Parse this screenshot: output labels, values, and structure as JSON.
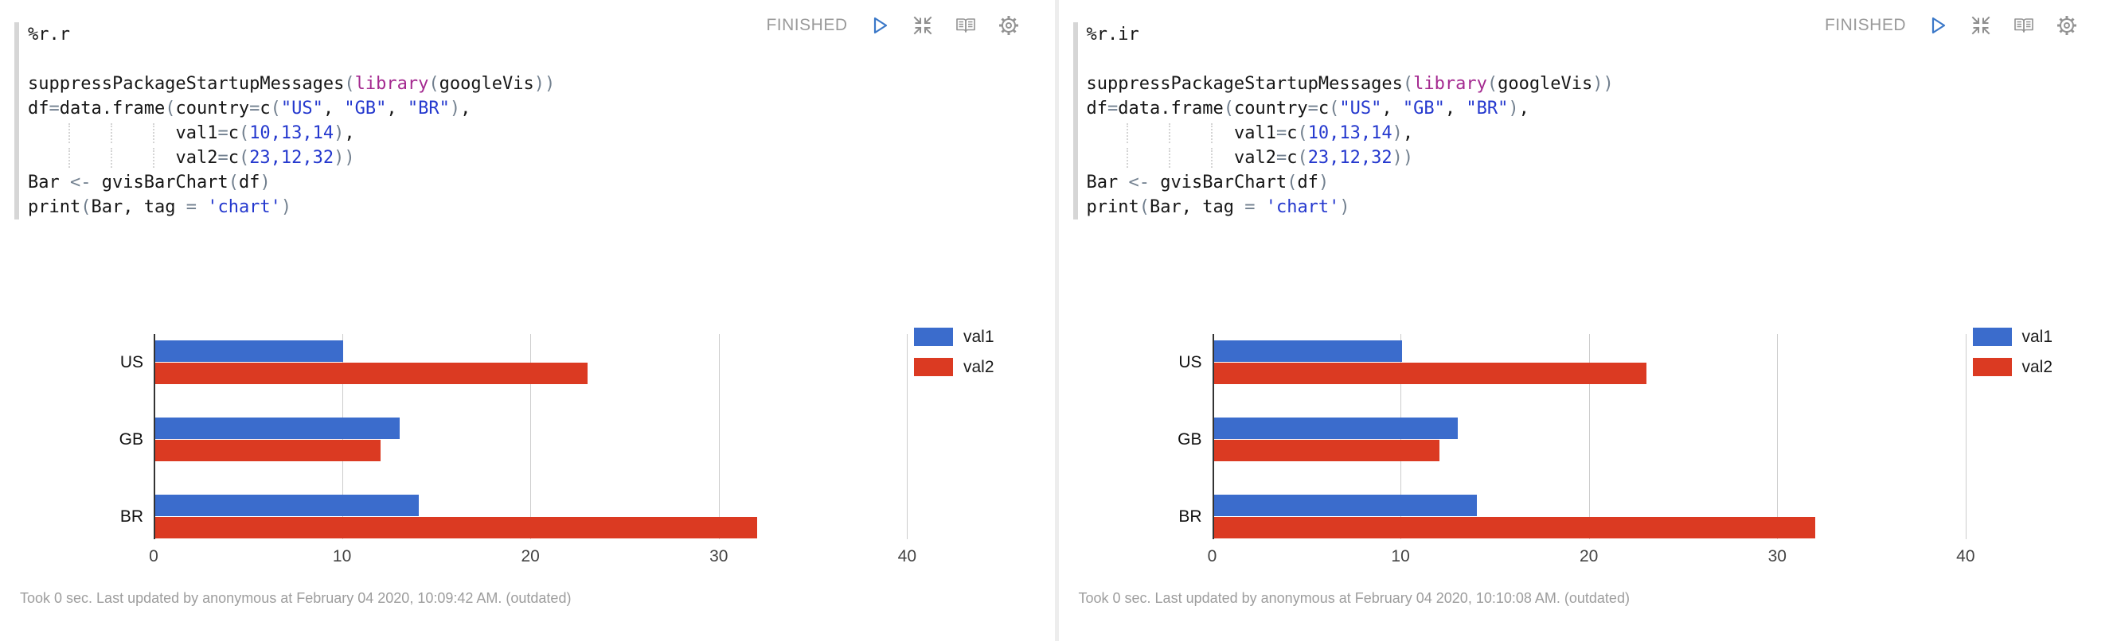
{
  "colors": {
    "bar_blue": "#3B6CCC",
    "bar_red": "#DB3A22",
    "code_keyword": "#A42A90",
    "code_literal": "#2438CE",
    "code_punctuation": "#72808F",
    "code_text": "#161616",
    "status_gray": "#9A9A9A",
    "footer_gray": "#9D9D9D",
    "run_icon_blue": "#3B78C8",
    "gridline_gray": "#CCCCCC",
    "editor_gutter_gray": "#D6D6D6"
  },
  "chart_data": [
    {
      "type": "bar",
      "orientation": "horizontal",
      "title": "",
      "categories": [
        "US",
        "GB",
        "BR"
      ],
      "series": [
        {
          "name": "val1",
          "color": "#3B6CCC",
          "values": [
            10,
            13,
            14
          ]
        },
        {
          "name": "val2",
          "color": "#DB3A22",
          "values": [
            23,
            12,
            32
          ]
        }
      ],
      "x_ticks": [
        0,
        10,
        20,
        30,
        40
      ],
      "xlim": [
        0,
        41
      ],
      "grid": true,
      "legend_position": "right"
    },
    {
      "type": "bar",
      "orientation": "horizontal",
      "title": "",
      "categories": [
        "US",
        "GB",
        "BR"
      ],
      "series": [
        {
          "name": "val1",
          "color": "#3B6CCC",
          "values": [
            10,
            13,
            14
          ]
        },
        {
          "name": "val2",
          "color": "#DB3A22",
          "values": [
            23,
            12,
            32
          ]
        }
      ],
      "x_ticks": [
        0,
        10,
        20,
        30,
        40
      ],
      "xlim": [
        0,
        41
      ],
      "grid": true,
      "legend_position": "right"
    }
  ],
  "paragraphs": [
    {
      "interpreter": "%r.r",
      "status": "FINISHED",
      "controls": [
        "run-icon",
        "compress-icon",
        "book-icon",
        "gear-icon"
      ],
      "chart_index": 0,
      "footer": "Took 0 sec. Last updated by anonymous at February 04 2020, 10:09:42 AM. (outdated)",
      "code_lines": [
        [],
        [
          [
            "p",
            "suppressPackageStartupMessages"
          ],
          [
            "o",
            "("
          ],
          [
            "k",
            "library"
          ],
          [
            "o",
            "("
          ],
          [
            "p",
            "googleVis"
          ],
          [
            "o",
            "))"
          ]
        ],
        [
          [
            "p",
            "df"
          ],
          [
            "o",
            "="
          ],
          [
            "p",
            "data.frame"
          ],
          [
            "o",
            "("
          ],
          [
            "p",
            "country"
          ],
          [
            "o",
            "="
          ],
          [
            "p",
            "c"
          ],
          [
            "o",
            "("
          ],
          [
            "s",
            "\"US\""
          ],
          [
            "p",
            ", "
          ],
          [
            "s",
            "\"GB\""
          ],
          [
            "p",
            ", "
          ],
          [
            "s",
            "\"BR\""
          ],
          [
            "o",
            ")"
          ],
          [
            "p",
            ","
          ]
        ],
        [
          [
            "p",
            "    "
          ],
          [
            "g",
            "    "
          ],
          [
            "g",
            "    "
          ],
          [
            "g",
            "  "
          ],
          [
            "p",
            "val1"
          ],
          [
            "o",
            "="
          ],
          [
            "p",
            "c"
          ],
          [
            "o",
            "("
          ],
          [
            "s",
            "10,13,14"
          ],
          [
            "o",
            ")"
          ],
          [
            "p",
            ","
          ]
        ],
        [
          [
            "p",
            "    "
          ],
          [
            "g",
            "    "
          ],
          [
            "g",
            "    "
          ],
          [
            "g",
            "  "
          ],
          [
            "p",
            "val2"
          ],
          [
            "o",
            "="
          ],
          [
            "p",
            "c"
          ],
          [
            "o",
            "("
          ],
          [
            "s",
            "23,12,32"
          ],
          [
            "o",
            "))"
          ]
        ],
        [
          [
            "p",
            "Bar "
          ],
          [
            "o",
            "<- "
          ],
          [
            "p",
            "gvisBarChart"
          ],
          [
            "o",
            "("
          ],
          [
            "p",
            "df"
          ],
          [
            "o",
            ")"
          ]
        ],
        [
          [
            "p",
            "print"
          ],
          [
            "o",
            "("
          ],
          [
            "p",
            "Bar, tag "
          ],
          [
            "o",
            "= "
          ],
          [
            "s",
            "'chart'"
          ],
          [
            "o",
            ")"
          ]
        ]
      ]
    },
    {
      "interpreter": "%r.ir",
      "status": "FINISHED",
      "controls": [
        "run-icon",
        "compress-icon",
        "book-icon",
        "gear-icon"
      ],
      "chart_index": 1,
      "footer": "Took 0 sec. Last updated by anonymous at February 04 2020, 10:10:08 AM. (outdated)",
      "code_lines": [
        [],
        [
          [
            "p",
            "suppressPackageStartupMessages"
          ],
          [
            "o",
            "("
          ],
          [
            "k",
            "library"
          ],
          [
            "o",
            "("
          ],
          [
            "p",
            "googleVis"
          ],
          [
            "o",
            "))"
          ]
        ],
        [
          [
            "p",
            "df"
          ],
          [
            "o",
            "="
          ],
          [
            "p",
            "data.frame"
          ],
          [
            "o",
            "("
          ],
          [
            "p",
            "country"
          ],
          [
            "o",
            "="
          ],
          [
            "p",
            "c"
          ],
          [
            "o",
            "("
          ],
          [
            "s",
            "\"US\""
          ],
          [
            "p",
            ", "
          ],
          [
            "s",
            "\"GB\""
          ],
          [
            "p",
            ", "
          ],
          [
            "s",
            "\"BR\""
          ],
          [
            "o",
            ")"
          ],
          [
            "p",
            ","
          ]
        ],
        [
          [
            "p",
            "    "
          ],
          [
            "g",
            "    "
          ],
          [
            "g",
            "    "
          ],
          [
            "g",
            "  "
          ],
          [
            "p",
            "val1"
          ],
          [
            "o",
            "="
          ],
          [
            "p",
            "c"
          ],
          [
            "o",
            "("
          ],
          [
            "s",
            "10,13,14"
          ],
          [
            "o",
            ")"
          ],
          [
            "p",
            ","
          ]
        ],
        [
          [
            "p",
            "    "
          ],
          [
            "g",
            "    "
          ],
          [
            "g",
            "    "
          ],
          [
            "g",
            "  "
          ],
          [
            "p",
            "val2"
          ],
          [
            "o",
            "="
          ],
          [
            "p",
            "c"
          ],
          [
            "o",
            "("
          ],
          [
            "s",
            "23,12,32"
          ],
          [
            "o",
            "))"
          ]
        ],
        [
          [
            "p",
            "Bar "
          ],
          [
            "o",
            "<- "
          ],
          [
            "p",
            "gvisBarChart"
          ],
          [
            "o",
            "("
          ],
          [
            "p",
            "df"
          ],
          [
            "o",
            ")"
          ]
        ],
        [
          [
            "p",
            "print"
          ],
          [
            "o",
            "("
          ],
          [
            "p",
            "Bar, tag "
          ],
          [
            "o",
            "= "
          ],
          [
            "s",
            "'chart'"
          ],
          [
            "o",
            ")"
          ]
        ]
      ]
    }
  ]
}
